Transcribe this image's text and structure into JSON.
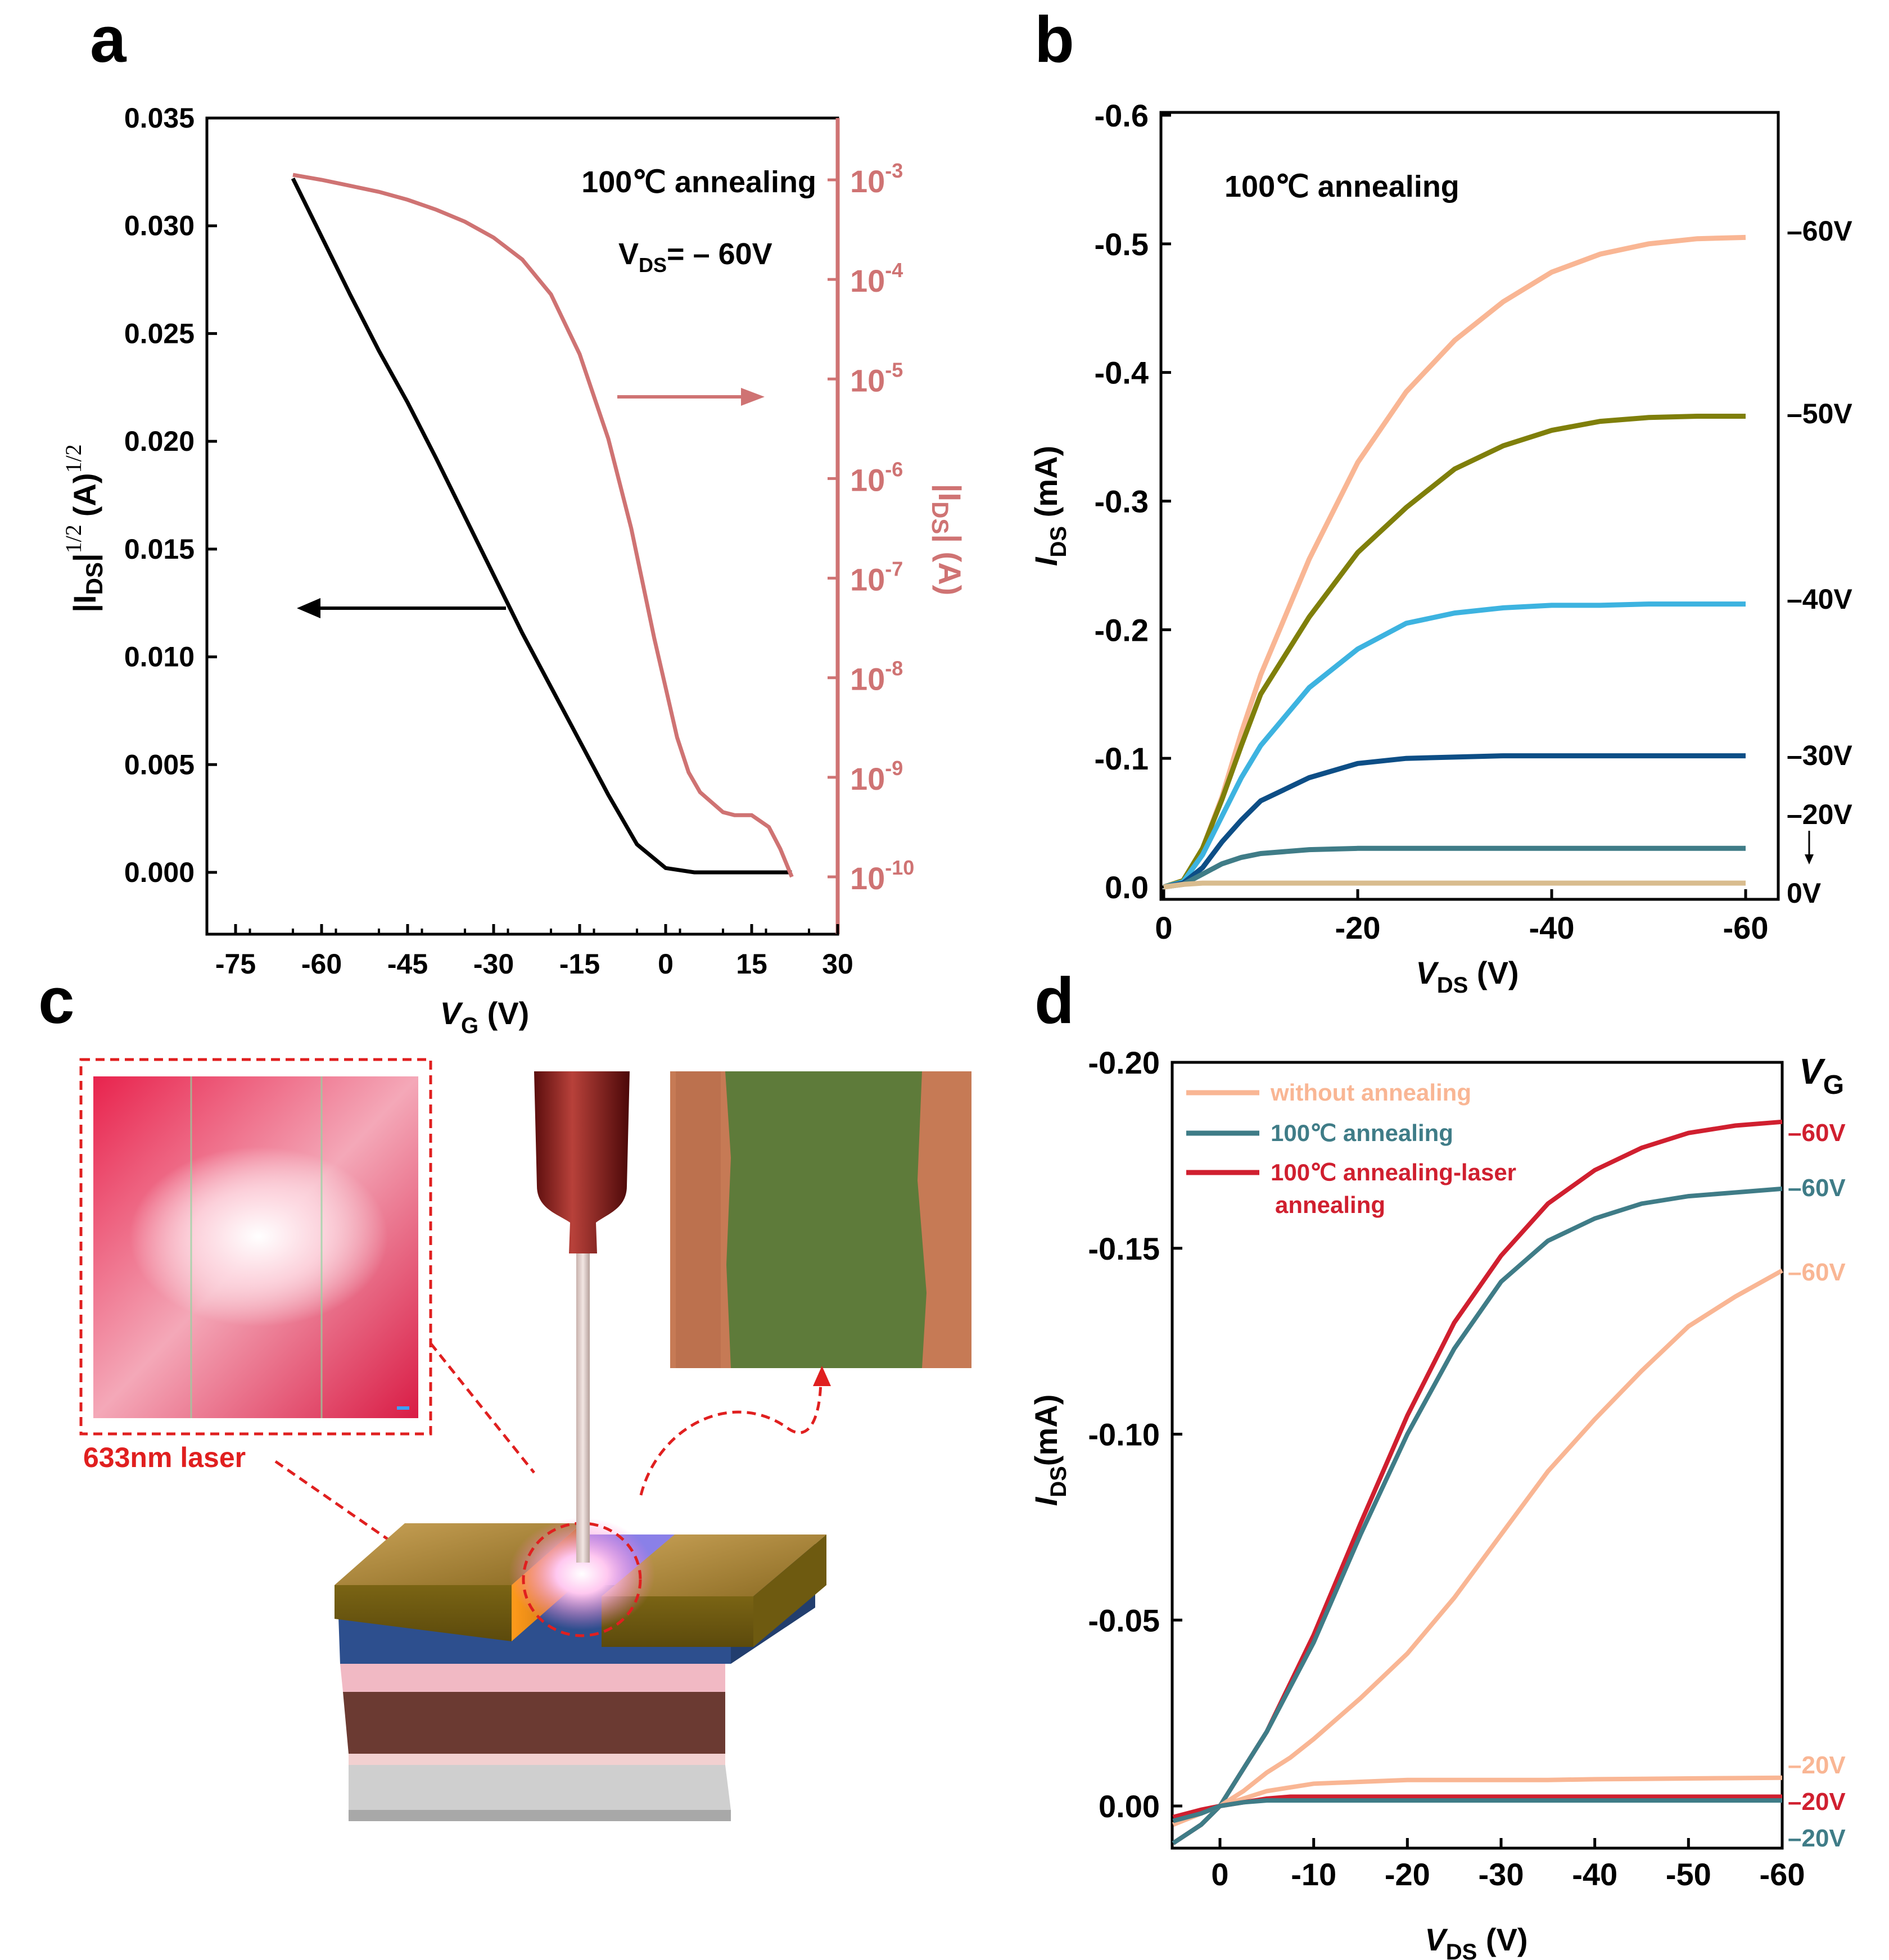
{
  "panel_labels": {
    "a": "a",
    "b": "b",
    "c": "c",
    "d": "d"
  },
  "colors": {
    "pink": "#cf7373",
    "black": "#000000",
    "peach": "#f9b694",
    "olive": "#7f7f0a",
    "skyblue": "#3db3e0",
    "navy": "#0d4e86",
    "teal": "#3f7c87",
    "tan": "#d9bc8f",
    "red": "#d01f2f",
    "laser_red": "#e01f1f"
  },
  "panel_a": {
    "annotation_text": "100℃ annealing",
    "vds_label": "V",
    "vds_sub": "DS",
    "vds_value": "= – 60V",
    "right_ticks": [
      {
        "base": "10",
        "exp": "-3"
      },
      {
        "base": "10",
        "exp": "-4"
      },
      {
        "base": "10",
        "exp": "-5"
      },
      {
        "base": "10",
        "exp": "-6"
      },
      {
        "base": "10",
        "exp": "-7"
      },
      {
        "base": "10",
        "exp": "-8"
      },
      {
        "base": "10",
        "exp": "-9"
      },
      {
        "base": "10",
        "exp": "-10"
      }
    ],
    "right_ylabel": "|I",
    "right_ylabel_sub": "DS",
    "right_ylabel_rest": "| (A)",
    "left_ylabel": "|I",
    "left_ylabel_sub": "DS",
    "left_ylabel_exp": "1/2",
    "left_ylabel_unit": "(A)",
    "left_ylabel_unit_exp": "1/2",
    "xlabel_var": "V",
    "xlabel_sub": "G",
    "xlabel_unit": " (V)"
  },
  "panel_b": {
    "annotation_text": "100℃ annealing",
    "ylabel": "I",
    "ylabel_sub": "DS",
    "ylabel_unit": " (mA)",
    "xlabel": "V",
    "xlabel_sub": "DS",
    "xlabel_unit": " (V)",
    "curve_labels": [
      "–60V",
      "–50V",
      "–40V",
      "–30V",
      "–20V",
      "0V"
    ]
  },
  "panel_c": {
    "laser_label": "633nm laser"
  },
  "panel_d": {
    "ylabel": "I",
    "ylabel_sub": "DS",
    "ylabel_unit": "(mA)",
    "xlabel": "V",
    "xlabel_sub": "DS",
    "xlabel_unit": " (V)",
    "vg_label": "V",
    "vg_sub": "G",
    "legend": [
      "without annealing",
      "100℃ annealing",
      "100℃ annealing-laser",
      "annealing"
    ],
    "curve_labels": [
      {
        "text": "–60V",
        "color": "red"
      },
      {
        "text": "–60V",
        "color": "teal"
      },
      {
        "text": "–60V",
        "color": "peach"
      },
      {
        "text": "–20V",
        "color": "peach"
      },
      {
        "text": "–20V",
        "color": "red"
      },
      {
        "text": "–20V",
        "color": "teal"
      }
    ]
  },
  "chart_data": [
    {
      "panel": "a",
      "type": "line",
      "title": "",
      "xlabel": "V_G (V)",
      "ylabel": "|I_DS|^1/2 (A)^1/2",
      "ylabel_right": "|I_DS| (A)",
      "xlim": [
        -80,
        30
      ],
      "ylim": [
        -0.003,
        0.035
      ],
      "ylim_right_log10": [
        -10.5,
        -2.45
      ],
      "x_ticks": [
        -75,
        -60,
        -45,
        -30,
        -15,
        0,
        15,
        30
      ],
      "y_ticks": [
        0.0,
        0.005,
        0.01,
        0.015,
        0.02,
        0.025,
        0.03,
        0.035
      ],
      "y_tick_labels": [
        "0.000",
        "0.005",
        "0.010",
        "0.015",
        "0.020",
        "0.025",
        "0.030",
        "0.035"
      ],
      "series": [
        {
          "name": "sqrt |I_DS|",
          "axis": "left",
          "color": "black",
          "x": [
            -65,
            -60,
            -55,
            -50,
            -45,
            -40,
            -35,
            -30,
            -25,
            -20,
            -15,
            -10,
            -5,
            0,
            5,
            10,
            15,
            20,
            22
          ],
          "y": [
            0.0322,
            0.0295,
            0.0268,
            0.0242,
            0.0218,
            0.0192,
            0.0165,
            0.0138,
            0.0111,
            0.0086,
            0.0061,
            0.0036,
            0.0013,
            0.0002,
            0.0,
            0.0,
            0.0,
            0.0,
            0.0
          ]
        },
        {
          "name": "|I_DS|",
          "axis": "right",
          "color": "pink",
          "x": [
            -65,
            -60,
            -55,
            -50,
            -45,
            -40,
            -35,
            -30,
            -25,
            -20,
            -15,
            -10,
            -8,
            -6,
            -4,
            -2,
            0,
            2,
            4,
            6,
            10,
            12,
            15,
            18,
            20,
            22
          ],
          "log10_y": [
            -2.95,
            -3.0,
            -3.06,
            -3.12,
            -3.2,
            -3.3,
            -3.42,
            -3.58,
            -3.8,
            -4.15,
            -4.75,
            -5.6,
            -6.05,
            -6.5,
            -7.05,
            -7.6,
            -8.1,
            -8.6,
            -8.95,
            -9.15,
            -9.35,
            -9.38,
            -9.38,
            -9.5,
            -9.72,
            -10.0
          ]
        }
      ],
      "annotations": [
        "100℃ annealing",
        "V_DS = –60V"
      ]
    },
    {
      "panel": "b",
      "type": "line",
      "xlabel": "V_DS (V)",
      "ylabel": "I_DS (mA)",
      "xlim": [
        0,
        -62
      ],
      "ylim": [
        0.01,
        -0.6
      ],
      "x_ticks": [
        0,
        -20,
        -40,
        -60
      ],
      "y_ticks": [
        0.0,
        -0.1,
        -0.2,
        -0.3,
        -0.4,
        -0.5,
        -0.6
      ],
      "y_tick_labels": [
        "0.0",
        "-0.1",
        "-0.2",
        "-0.3",
        "-0.4",
        "-0.5",
        "-0.6"
      ],
      "x": [
        0,
        -2,
        -4,
        -6,
        -8,
        -10,
        -15,
        -20,
        -25,
        -30,
        -35,
        -40,
        -45,
        -50,
        -55,
        -60
      ],
      "series": [
        {
          "name": "–60V",
          "color": "peach",
          "values": [
            0,
            -0.005,
            -0.03,
            -0.07,
            -0.12,
            -0.165,
            -0.255,
            -0.33,
            -0.385,
            -0.425,
            -0.455,
            -0.478,
            -0.492,
            -0.5,
            -0.504,
            -0.505
          ]
        },
        {
          "name": "–50V",
          "color": "olive",
          "values": [
            0,
            -0.005,
            -0.03,
            -0.068,
            -0.11,
            -0.15,
            -0.21,
            -0.26,
            -0.295,
            -0.325,
            -0.343,
            -0.355,
            -0.362,
            -0.365,
            -0.366,
            -0.366
          ]
        },
        {
          "name": "–40V",
          "color": "skyblue",
          "values": [
            0,
            -0.004,
            -0.025,
            -0.055,
            -0.085,
            -0.11,
            -0.155,
            -0.185,
            -0.205,
            -0.213,
            -0.217,
            -0.219,
            -0.219,
            -0.22,
            -0.22,
            -0.22
          ]
        },
        {
          "name": "–30V",
          "color": "navy",
          "values": [
            0,
            -0.003,
            -0.015,
            -0.035,
            -0.052,
            -0.067,
            -0.085,
            -0.096,
            -0.1,
            -0.101,
            -0.102,
            -0.102,
            -0.102,
            -0.102,
            -0.102,
            -0.102
          ]
        },
        {
          "name": "–20V",
          "color": "teal",
          "values": [
            0,
            -0.002,
            -0.01,
            -0.018,
            -0.023,
            -0.026,
            -0.029,
            -0.03,
            -0.03,
            -0.03,
            -0.03,
            -0.03,
            -0.03,
            -0.03,
            -0.03,
            -0.03
          ]
        },
        {
          "name": "0V",
          "color": "tan",
          "values": [
            0,
            -0.002,
            -0.003,
            -0.003,
            -0.003,
            -0.003,
            -0.003,
            -0.003,
            -0.003,
            -0.003,
            -0.003,
            -0.003,
            -0.003,
            -0.003,
            -0.003,
            -0.003
          ]
        }
      ],
      "annotations": [
        "100℃ annealing"
      ]
    },
    {
      "panel": "d",
      "type": "line",
      "xlabel": "V_DS (V)",
      "ylabel": "I_DS (mA)",
      "xlim": [
        5,
        -60
      ],
      "ylim": [
        0.01,
        -0.2
      ],
      "x_ticks": [
        0,
        -10,
        -20,
        -30,
        -40,
        -50,
        -60
      ],
      "y_ticks": [
        0.0,
        -0.05,
        -0.1,
        -0.15,
        -0.2
      ],
      "y_tick_labels": [
        "0.00",
        "-0.05",
        "-0.10",
        "-0.15",
        "-0.20"
      ],
      "legend_position": "top-left",
      "x": [
        5,
        2,
        0,
        -2.5,
        -5,
        -7.5,
        -10,
        -15,
        -20,
        -25,
        -30,
        -35,
        -40,
        -45,
        -50,
        -55,
        -60
      ],
      "series": [
        {
          "name": "100℃ annealing-laser annealing (V_G –60V)",
          "color": "red",
          "values": [
            0.01,
            0.005,
            0.0,
            -0.01,
            -0.02,
            -0.033,
            -0.046,
            -0.076,
            -0.105,
            -0.13,
            -0.148,
            -0.162,
            -0.171,
            -0.177,
            -0.181,
            -0.183,
            -0.184
          ]
        },
        {
          "name": "100℃ annealing (V_G –60V)",
          "color": "teal",
          "values": [
            0.01,
            0.005,
            0.0,
            -0.01,
            -0.02,
            -0.032,
            -0.044,
            -0.073,
            -0.1,
            -0.123,
            -0.141,
            -0.152,
            -0.158,
            -0.162,
            -0.164,
            -0.165,
            -0.166
          ]
        },
        {
          "name": "without annealing (V_G –60V)",
          "color": "peach",
          "values": [
            0.005,
            0.002,
            0.0,
            -0.004,
            -0.009,
            -0.013,
            -0.018,
            -0.029,
            -0.041,
            -0.056,
            -0.073,
            -0.09,
            -0.104,
            -0.117,
            -0.129,
            -0.137,
            -0.144
          ]
        },
        {
          "name": "without annealing (V_G –20V)",
          "color": "peach",
          "values": [
            0.005,
            0.002,
            0.0,
            -0.002,
            -0.004,
            -0.005,
            -0.006,
            -0.0065,
            -0.007,
            -0.007,
            -0.007,
            -0.007,
            -0.0072,
            -0.0073,
            -0.0074,
            -0.0075,
            -0.0076
          ]
        },
        {
          "name": "100℃ annealing-laser annealing (V_G –20V)",
          "color": "red",
          "values": [
            0.003,
            0.001,
            0.0,
            -0.001,
            -0.002,
            -0.0025,
            -0.0025,
            -0.0025,
            -0.0025,
            -0.0025,
            -0.0025,
            -0.0025,
            -0.0025,
            -0.0025,
            -0.0025,
            -0.0025,
            -0.0025
          ]
        },
        {
          "name": "100℃ annealing (V_G –20V)",
          "color": "teal",
          "values": [
            0.004,
            0.002,
            0.0,
            -0.001,
            -0.0015,
            -0.0015,
            -0.0015,
            -0.0015,
            -0.0015,
            -0.0015,
            -0.0015,
            -0.0015,
            -0.0015,
            -0.0015,
            -0.0015,
            -0.0015,
            -0.0015
          ]
        }
      ],
      "legend": [
        "without annealing",
        "100℃ annealing",
        "100℃ annealing-laser annealing"
      ]
    }
  ]
}
